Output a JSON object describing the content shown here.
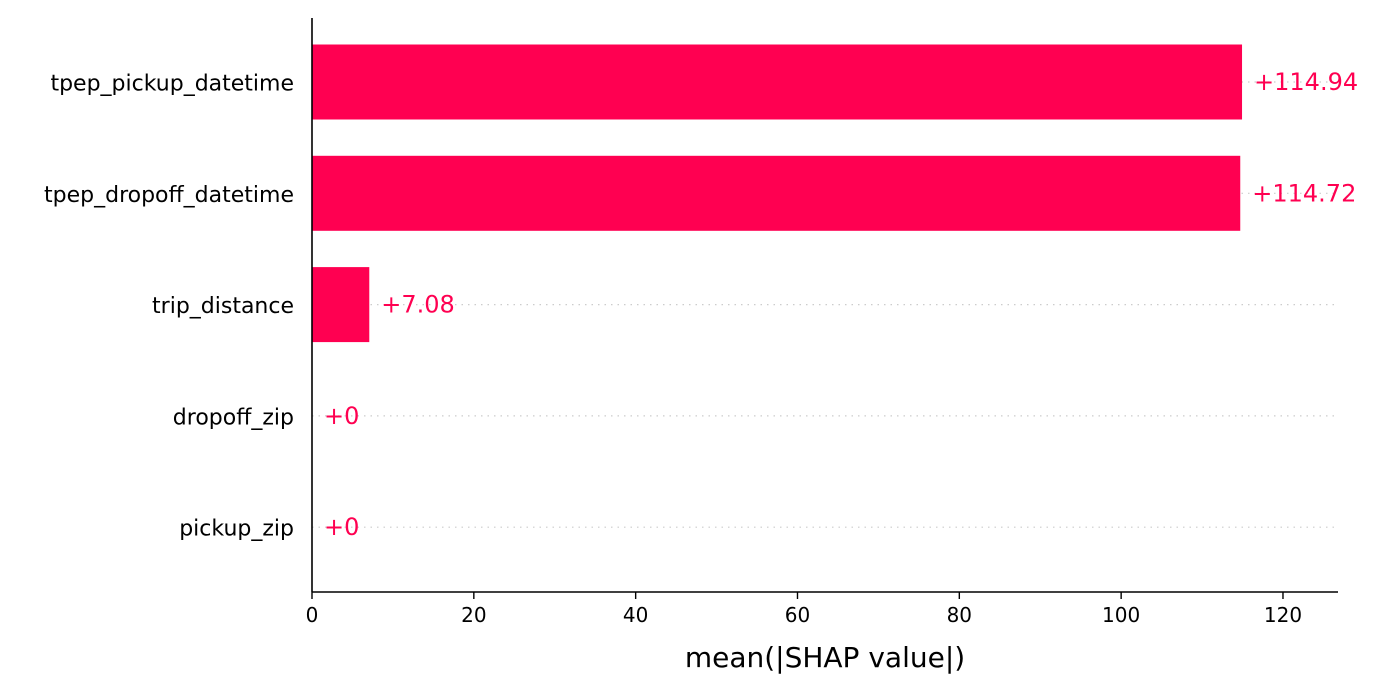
{
  "chart_data": {
    "type": "bar",
    "orientation": "horizontal",
    "categories": [
      "tpep_pickup_datetime",
      "tpep_dropoff_datetime",
      "trip_distance",
      "dropoff_zip",
      "pickup_zip"
    ],
    "values": [
      114.94,
      114.72,
      7.08,
      0,
      0
    ],
    "value_labels": [
      "+114.94",
      "+114.72",
      "+7.08",
      "+0",
      "+0"
    ],
    "title": "",
    "xlabel": "mean(|SHAP value|)",
    "ylabel": "",
    "xlim": [
      0,
      126.8
    ],
    "xticks": [
      0,
      20,
      40,
      60,
      80,
      100,
      120
    ],
    "grid": "dotted horizontal guide per bar",
    "legend": "none",
    "colors": {
      "bar": "#ff0051",
      "axis": "#000000",
      "guide": "#cccccc"
    }
  }
}
